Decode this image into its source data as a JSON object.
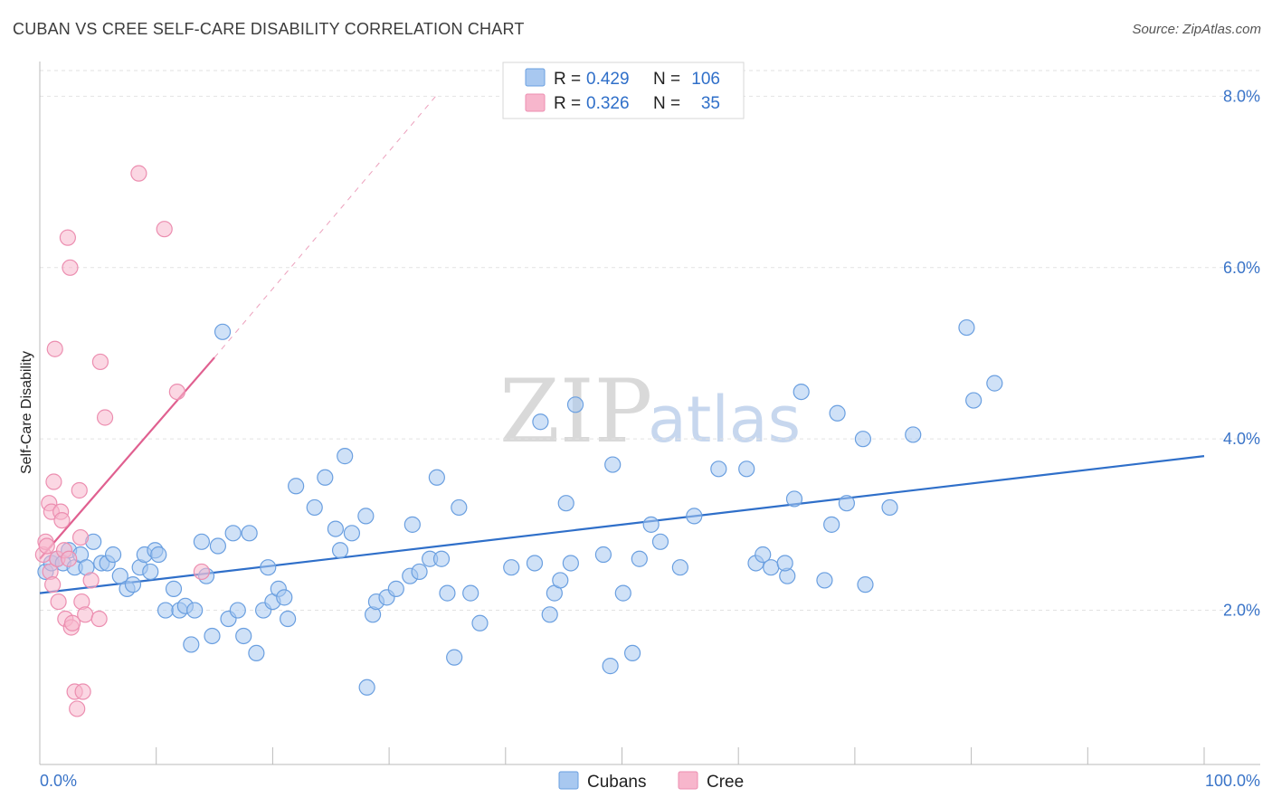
{
  "title": "CUBAN VS CREE SELF-CARE DISABILITY CORRELATION CHART",
  "source": "Source: ZipAtlas.com",
  "watermark": {
    "zip": "ZIP",
    "atlas": "atlas"
  },
  "legend": {
    "items": [
      {
        "r_label": "R =",
        "r_value": "0.429",
        "n_label": "N =",
        "n_value": "106",
        "color": "#a8c8f0"
      },
      {
        "r_label": "R =",
        "r_value": "0.326",
        "n_label": "N =",
        "n_value": "35",
        "color": "#f7b6cc"
      }
    ]
  },
  "bottom_legend": [
    "Cubans",
    "Cree"
  ],
  "chart_data": {
    "type": "scatter",
    "title": "CUBAN VS CREE SELF-CARE DISABILITY CORRELATION CHART",
    "xlabel": "",
    "ylabel": "Self-Care Disability",
    "xlim": [
      0,
      100
    ],
    "ylim": [
      0.2,
      8.3
    ],
    "y_ticks": [
      2.0,
      4.0,
      6.0,
      8.0
    ],
    "y_tick_labels": [
      "2.0%",
      "4.0%",
      "6.0%",
      "8.0%"
    ],
    "x_tick_labels": [
      "0.0%",
      "100.0%"
    ],
    "grid": true,
    "legend_position": "top-center",
    "series": [
      {
        "name": "Cubans",
        "color": "#a8c8f0",
        "stroke": "#6a9fe0",
        "trend_color": "#2f6fc9",
        "trend": {
          "x0": 0,
          "y0": 2.2,
          "x1": 100,
          "y1": 3.8
        },
        "points": [
          [
            0.5,
            2.45
          ],
          [
            1.0,
            2.55
          ],
          [
            1.5,
            2.6
          ],
          [
            2.0,
            2.55
          ],
          [
            2.5,
            2.7
          ],
          [
            3.0,
            2.5
          ],
          [
            3.5,
            2.65
          ],
          [
            4.0,
            2.5
          ],
          [
            4.6,
            2.8
          ],
          [
            5.3,
            2.55
          ],
          [
            5.8,
            2.55
          ],
          [
            6.3,
            2.65
          ],
          [
            6.9,
            2.4
          ],
          [
            7.5,
            2.25
          ],
          [
            8.0,
            2.3
          ],
          [
            8.6,
            2.5
          ],
          [
            9.0,
            2.65
          ],
          [
            9.5,
            2.45
          ],
          [
            9.9,
            2.7
          ],
          [
            10.2,
            2.65
          ],
          [
            10.8,
            2.0
          ],
          [
            11.5,
            2.25
          ],
          [
            12.0,
            2.0
          ],
          [
            12.5,
            2.05
          ],
          [
            13.0,
            1.6
          ],
          [
            13.3,
            2.0
          ],
          [
            13.9,
            2.8
          ],
          [
            14.3,
            2.4
          ],
          [
            14.8,
            1.7
          ],
          [
            15.3,
            2.75
          ],
          [
            15.7,
            5.25
          ],
          [
            16.2,
            1.9
          ],
          [
            16.6,
            2.9
          ],
          [
            17.0,
            2.0
          ],
          [
            17.5,
            1.7
          ],
          [
            18.0,
            2.9
          ],
          [
            18.6,
            1.5
          ],
          [
            19.2,
            2.0
          ],
          [
            19.6,
            2.5
          ],
          [
            20.0,
            2.1
          ],
          [
            20.5,
            2.25
          ],
          [
            21.0,
            2.15
          ],
          [
            21.3,
            1.9
          ],
          [
            22.0,
            3.45
          ],
          [
            23.6,
            3.2
          ],
          [
            24.5,
            3.55
          ],
          [
            25.4,
            2.95
          ],
          [
            25.8,
            2.7
          ],
          [
            26.2,
            3.8
          ],
          [
            26.8,
            2.9
          ],
          [
            28.0,
            3.1
          ],
          [
            28.1,
            1.1
          ],
          [
            28.6,
            1.95
          ],
          [
            28.9,
            2.1
          ],
          [
            29.8,
            2.15
          ],
          [
            30.6,
            2.25
          ],
          [
            31.8,
            2.4
          ],
          [
            32.6,
            2.45
          ],
          [
            32.0,
            3.0
          ],
          [
            33.5,
            2.6
          ],
          [
            34.1,
            3.55
          ],
          [
            34.5,
            2.6
          ],
          [
            35.0,
            2.2
          ],
          [
            35.6,
            1.45
          ],
          [
            36.0,
            3.2
          ],
          [
            37.0,
            2.2
          ],
          [
            37.8,
            1.85
          ],
          [
            40.5,
            2.5
          ],
          [
            42.5,
            2.55
          ],
          [
            43.0,
            4.2
          ],
          [
            43.8,
            1.95
          ],
          [
            44.2,
            2.2
          ],
          [
            44.7,
            2.35
          ],
          [
            45.2,
            3.25
          ],
          [
            45.6,
            2.55
          ],
          [
            46.0,
            4.4
          ],
          [
            48.4,
            2.65
          ],
          [
            49.0,
            1.35
          ],
          [
            49.2,
            3.7
          ],
          [
            50.1,
            2.2
          ],
          [
            50.9,
            1.5
          ],
          [
            51.5,
            2.6
          ],
          [
            52.5,
            3.0
          ],
          [
            53.3,
            2.8
          ],
          [
            55.0,
            2.5
          ],
          [
            56.2,
            3.1
          ],
          [
            58.3,
            3.65
          ],
          [
            60.7,
            3.65
          ],
          [
            61.5,
            2.55
          ],
          [
            62.1,
            2.65
          ],
          [
            62.8,
            2.5
          ],
          [
            64.2,
            2.4
          ],
          [
            64.8,
            3.3
          ],
          [
            65.4,
            4.55
          ],
          [
            67.4,
            2.35
          ],
          [
            68.0,
            3.0
          ],
          [
            68.5,
            4.3
          ],
          [
            69.3,
            3.25
          ],
          [
            70.7,
            4.0
          ],
          [
            70.9,
            2.3
          ],
          [
            75.0,
            4.05
          ],
          [
            79.6,
            5.3
          ],
          [
            80.2,
            4.45
          ],
          [
            82.0,
            4.65
          ],
          [
            64.0,
            2.55
          ],
          [
            73.0,
            3.2
          ]
        ]
      },
      {
        "name": "Cree",
        "color": "#f7b6cc",
        "stroke": "#ec8eb0",
        "trend_color": "#e06090",
        "trend": {
          "x0": 0,
          "y0": 2.6,
          "x1": 15,
          "y1": 4.95
        },
        "trend_dashed_to": {
          "x": 34,
          "y": 8.0
        },
        "points": [
          [
            0.3,
            2.65
          ],
          [
            0.5,
            2.8
          ],
          [
            0.6,
            2.75
          ],
          [
            0.8,
            3.25
          ],
          [
            0.9,
            2.45
          ],
          [
            1.0,
            3.15
          ],
          [
            1.1,
            2.3
          ],
          [
            1.2,
            3.5
          ],
          [
            1.3,
            5.05
          ],
          [
            1.5,
            2.6
          ],
          [
            1.6,
            2.1
          ],
          [
            1.8,
            3.15
          ],
          [
            1.9,
            3.05
          ],
          [
            2.1,
            2.7
          ],
          [
            2.2,
            1.9
          ],
          [
            2.4,
            6.35
          ],
          [
            2.6,
            6.0
          ],
          [
            2.7,
            1.8
          ],
          [
            2.8,
            1.85
          ],
          [
            3.0,
            1.05
          ],
          [
            3.2,
            0.85
          ],
          [
            3.4,
            3.4
          ],
          [
            3.5,
            2.85
          ],
          [
            3.6,
            2.1
          ],
          [
            3.7,
            1.05
          ],
          [
            3.9,
            1.95
          ],
          [
            4.4,
            2.35
          ],
          [
            5.1,
            1.9
          ],
          [
            5.2,
            4.9
          ],
          [
            5.6,
            4.25
          ],
          [
            8.5,
            7.1
          ],
          [
            10.7,
            6.45
          ],
          [
            11.8,
            4.55
          ],
          [
            13.9,
            2.45
          ],
          [
            2.5,
            2.6
          ]
        ]
      }
    ]
  }
}
